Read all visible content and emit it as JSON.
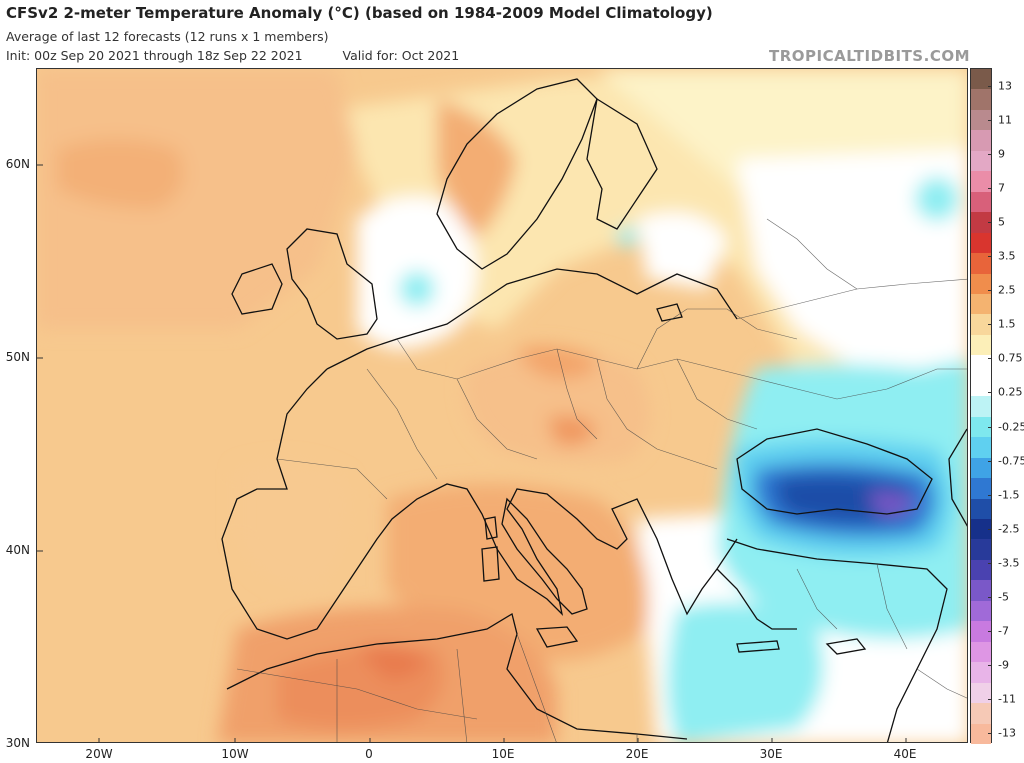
{
  "header": {
    "title": "CFSv2 2-meter Temperature Anomaly (°C) (based on 1984-2009 Model Climatology)",
    "subtitle": "Average of last 12 forecasts (12 runs x 1 members)",
    "init": "Init: 00z Sep 20 2021 through 18z Sep 22 2021",
    "valid": "Valid for: Oct 2021",
    "brand": "TROPICALTIDBITS.COM"
  },
  "axes": {
    "lat_labels": [
      "60N",
      "50N",
      "40N",
      "30N"
    ],
    "lon_labels": [
      "20W",
      "10W",
      "0",
      "10E",
      "20E",
      "30E",
      "40E"
    ]
  },
  "colorbar": {
    "labels": [
      "13",
      "11",
      "9",
      "7",
      "5",
      "3.5",
      "2.5",
      "1.5",
      "0.75",
      "0.25",
      "-0.25",
      "-0.75",
      "-1.5",
      "-2.5",
      "-3.5",
      "-5",
      "-7",
      "-9",
      "-11",
      "-13"
    ],
    "colors": [
      "#7a5a4a",
      "#a0746a",
      "#b98a8e",
      "#d79ab2",
      "#e3a8c5",
      "#ea8da8",
      "#d8607a",
      "#c23a43",
      "#d9352e",
      "#e8643a",
      "#f08d4c",
      "#f4b370",
      "#f8d79b",
      "#fcefb8",
      "#ffffff",
      "#ffffff",
      "#bdf3f5",
      "#7ee8ee",
      "#5fd0f0",
      "#3fa3e6",
      "#2f78d2",
      "#1f4ea8",
      "#16308a",
      "#283a9a",
      "#4a42b0",
      "#7a58c8",
      "#a06ad8",
      "#c87ae0",
      "#de96e4",
      "#e8b4e8",
      "#f0d0e8",
      "#f6c9b6",
      "#f8b99c"
    ]
  },
  "map_legend": {
    "note": ""
  }
}
